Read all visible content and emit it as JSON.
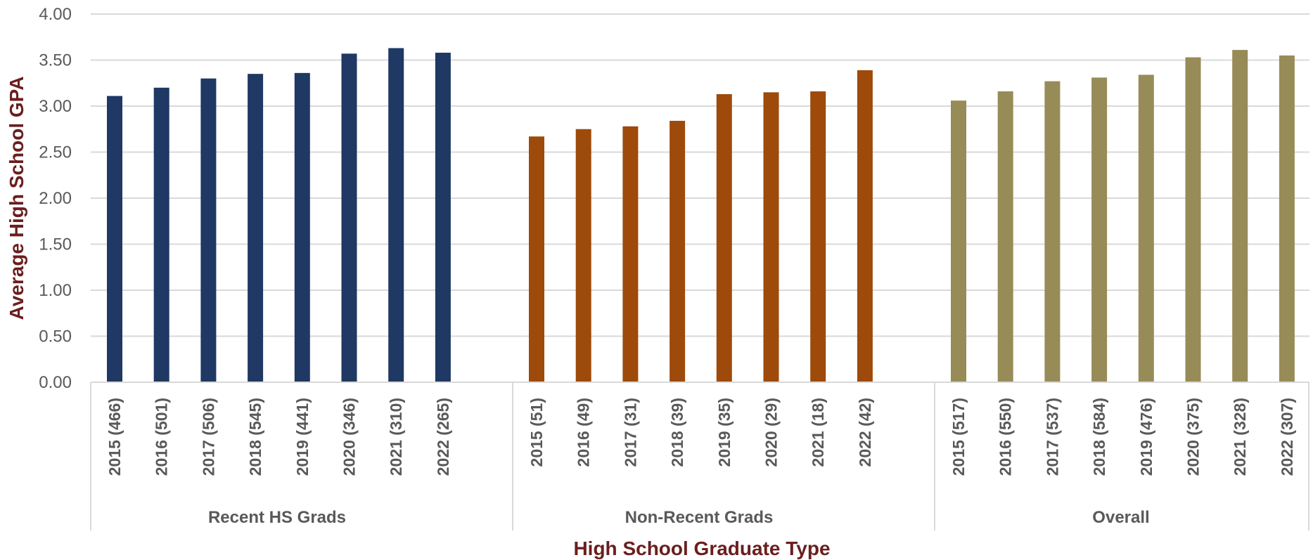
{
  "chart_data": {
    "type": "bar",
    "title": "",
    "xlabel": "High School Graduate Type",
    "ylabel": "Average High School GPA",
    "ylim": [
      0,
      4
    ],
    "yticks": [
      "0.00",
      "0.50",
      "1.00",
      "1.50",
      "2.00",
      "2.50",
      "3.00",
      "3.50",
      "4.00"
    ],
    "grid": true,
    "legend": "none",
    "groups": [
      {
        "name": "Recent HS Grads",
        "color": "#1f3864",
        "categories": [
          "2015 (466)",
          "2016 (501)",
          "2017 (506)",
          "2018 (545)",
          "2019 (441)",
          "2020 (346)",
          "2021 (310)",
          "2022 (265)"
        ],
        "values": [
          3.11,
          3.2,
          3.3,
          3.35,
          3.36,
          3.57,
          3.63,
          3.58
        ]
      },
      {
        "name": "Non-Recent Grads",
        "color": "#9e4a0b",
        "categories": [
          "2015 (51)",
          "2016 (49)",
          "2017 (31)",
          "2018 (39)",
          "2019 (35)",
          "2020 (29)",
          "2021 (18)",
          "2022 (42)"
        ],
        "values": [
          2.67,
          2.75,
          2.78,
          2.84,
          3.13,
          3.15,
          3.16,
          3.39
        ]
      },
      {
        "name": "Overall",
        "color": "#978b57",
        "categories": [
          "2015 (517)",
          "2016 (550)",
          "2017 (537)",
          "2018 (584)",
          "2019 (476)",
          "2020 (375)",
          "2021 (328)",
          "2022 (307)"
        ],
        "values": [
          3.06,
          3.16,
          3.27,
          3.31,
          3.34,
          3.53,
          3.61,
          3.55
        ]
      }
    ]
  }
}
